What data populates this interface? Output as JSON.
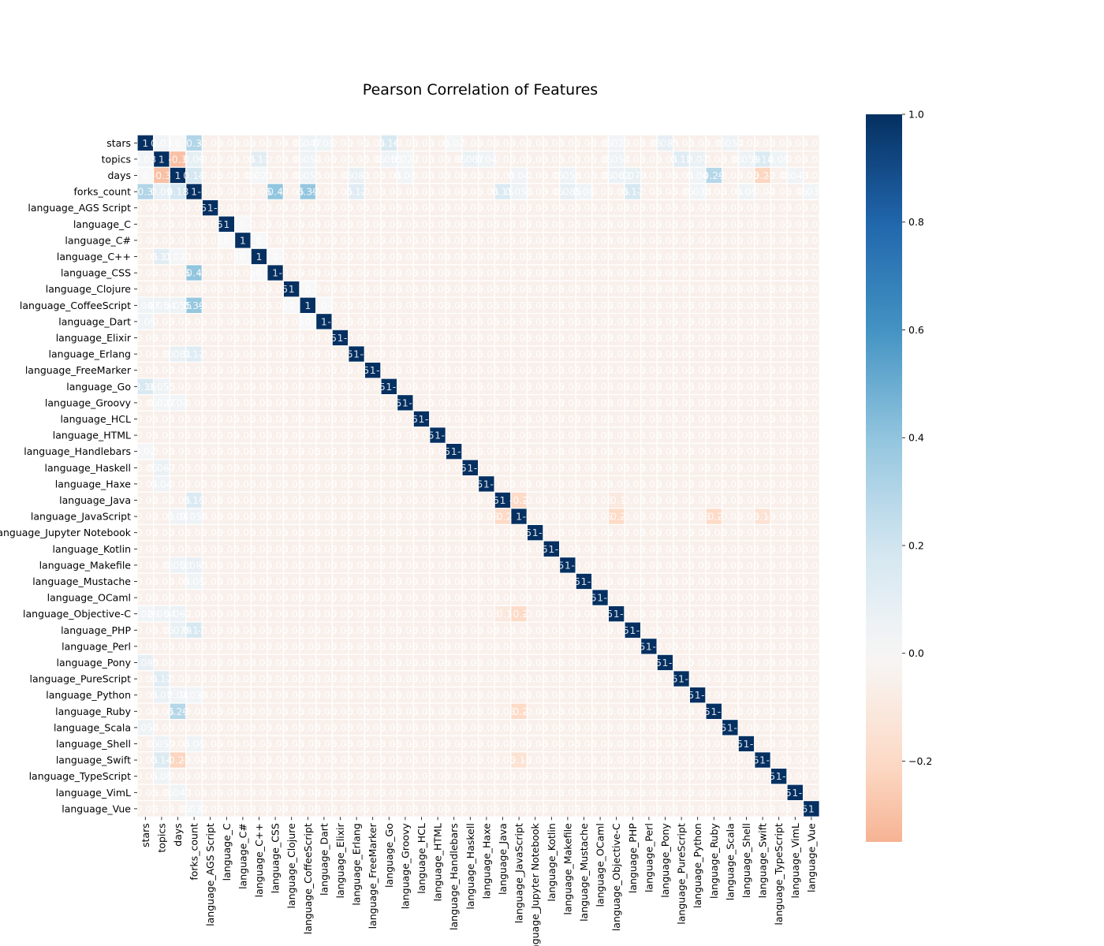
{
  "chart_data": {
    "type": "heatmap",
    "title": "Pearson Correlation of Features",
    "labels": [
      "stars",
      "topics",
      "days",
      "forks_count",
      "language_AGS Script",
      "language_C",
      "language_C#",
      "language_C++",
      "language_CSS",
      "language_Clojure",
      "language_CoffeeScript",
      "language_Dart",
      "language_Elixir",
      "language_Erlang",
      "language_FreeMarker",
      "language_Go",
      "language_Groovy",
      "language_HCL",
      "language_HTML",
      "language_Handlebars",
      "language_Haskell",
      "language_Haxe",
      "language_Java",
      "language_JavaScript",
      "language_Jupyter Notebook",
      "language_Kotlin",
      "language_Makefile",
      "language_Mustache",
      "language_OCaml",
      "language_Objective-C",
      "language_PHP",
      "language_Perl",
      "language_Pony",
      "language_PureScript",
      "language_Python",
      "language_Ruby",
      "language_Scala",
      "language_Shell",
      "language_Swift",
      "language_TypeScript",
      "language_VimL",
      "language_Vue"
    ],
    "special": [
      [
        0,
        1,
        0.03
      ],
      [
        0,
        2,
        0.0
      ],
      [
        0,
        3,
        0.3
      ],
      [
        0,
        10,
        0.047
      ],
      [
        0,
        11,
        0.05
      ],
      [
        0,
        15,
        0.16
      ],
      [
        0,
        19,
        0.02
      ],
      [
        0,
        29,
        0.029
      ],
      [
        0,
        32,
        0.085
      ],
      [
        0,
        36,
        0.054
      ],
      [
        1,
        2,
        -0.3
      ],
      [
        1,
        3,
        0.09
      ],
      [
        1,
        7,
        0.11
      ],
      [
        1,
        10,
        0.054
      ],
      [
        1,
        15,
        0.055
      ],
      [
        1,
        16,
        0.027
      ],
      [
        1,
        20,
        0.067
      ],
      [
        1,
        21,
        0.04
      ],
      [
        1,
        29,
        0.054
      ],
      [
        1,
        33,
        0.12
      ],
      [
        1,
        34,
        0.07
      ],
      [
        1,
        37,
        0.059
      ],
      [
        1,
        38,
        0.14
      ],
      [
        1,
        39,
        0.05
      ],
      [
        2,
        3,
        0.18
      ],
      [
        2,
        7,
        0.023
      ],
      [
        2,
        10,
        0.055
      ],
      [
        2,
        13,
        0.081
      ],
      [
        2,
        16,
        0.03
      ],
      [
        2,
        23,
        0.04
      ],
      [
        2,
        26,
        0.058
      ],
      [
        2,
        29,
        0.062
      ],
      [
        2,
        30,
        0.079
      ],
      [
        2,
        34,
        0.04
      ],
      [
        2,
        35,
        0.29
      ],
      [
        2,
        38,
        -0.22
      ],
      [
        2,
        40,
        0.043
      ],
      [
        3,
        8,
        0.4
      ],
      [
        3,
        10,
        0.39
      ],
      [
        3,
        13,
        0.12
      ],
      [
        3,
        22,
        0.15
      ],
      [
        3,
        23,
        0.056
      ],
      [
        3,
        26,
        0.085
      ],
      [
        3,
        27,
        0.05
      ],
      [
        3,
        30,
        0.17
      ],
      [
        3,
        34,
        0.038
      ],
      [
        3,
        37,
        0.05
      ],
      [
        3,
        38,
        -0.04
      ],
      [
        3,
        41,
        0.032
      ],
      [
        5,
        6,
        0.0
      ],
      [
        6,
        7,
        0.0
      ],
      [
        7,
        8,
        0.0
      ],
      [
        9,
        10,
        0.0
      ],
      [
        10,
        11,
        0.0
      ],
      [
        22,
        23,
        -0.2
      ],
      [
        23,
        29,
        -0.2
      ],
      [
        23,
        35,
        -0.2
      ],
      [
        23,
        38,
        -0.15
      ],
      [
        22,
        29,
        -0.1
      ],
      [
        2,
        2,
        1
      ],
      [
        1,
        1,
        1
      ]
    ],
    "vmin": -0.35,
    "vmax": 1.0,
    "colorbar_ticks": [
      1.0,
      0.8,
      0.6,
      0.4,
      0.2,
      0.0,
      -0.2
    ],
    "colormap": [
      "#67001f",
      "#b2182b",
      "#d6604d",
      "#f4a582",
      "#fddbc7",
      "#f7f7f7",
      "#d1e5f0",
      "#92c5de",
      "#4393c3",
      "#2166ac",
      "#053061"
    ]
  }
}
